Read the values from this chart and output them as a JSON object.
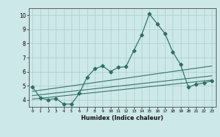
{
  "xlabel": "Humidex (Indice chaleur)",
  "bg_color": "#cce8e8",
  "grid_color": "#aacccc",
  "line_color": "#2e6e64",
  "xlim": [
    -0.5,
    23.5
  ],
  "ylim": [
    3.5,
    10.5
  ],
  "xticks": [
    0,
    1,
    2,
    3,
    4,
    5,
    6,
    7,
    8,
    9,
    10,
    11,
    12,
    13,
    14,
    15,
    16,
    17,
    18,
    19,
    20,
    21,
    22,
    23
  ],
  "yticks": [
    4,
    5,
    6,
    7,
    8,
    9,
    10
  ],
  "series": [
    {
      "x": [
        0,
        1,
        2,
        3,
        4,
        5,
        6,
        7,
        8,
        9,
        10,
        11,
        12,
        13,
        14,
        15,
        16,
        17,
        18,
        19,
        20,
        21,
        22,
        23
      ],
      "y": [
        4.9,
        4.15,
        4.0,
        4.1,
        3.7,
        3.7,
        4.45,
        5.6,
        6.2,
        6.4,
        6.0,
        6.3,
        6.35,
        7.5,
        8.6,
        10.1,
        9.4,
        8.7,
        7.4,
        6.5,
        4.9,
        5.1,
        5.2,
        5.35
      ],
      "marker": "D",
      "markersize": 2.5,
      "linewidth": 0.9,
      "zorder": 4
    },
    {
      "x": [
        0,
        23
      ],
      "y": [
        4.6,
        6.4
      ],
      "marker": null,
      "markersize": 0,
      "linewidth": 0.8,
      "zorder": 3
    },
    {
      "x": [
        0,
        23
      ],
      "y": [
        4.3,
        5.7
      ],
      "marker": null,
      "markersize": 0,
      "linewidth": 0.8,
      "zorder": 3
    },
    {
      "x": [
        0,
        23
      ],
      "y": [
        4.05,
        5.4
      ],
      "marker": null,
      "markersize": 0,
      "linewidth": 0.8,
      "zorder": 3
    }
  ]
}
